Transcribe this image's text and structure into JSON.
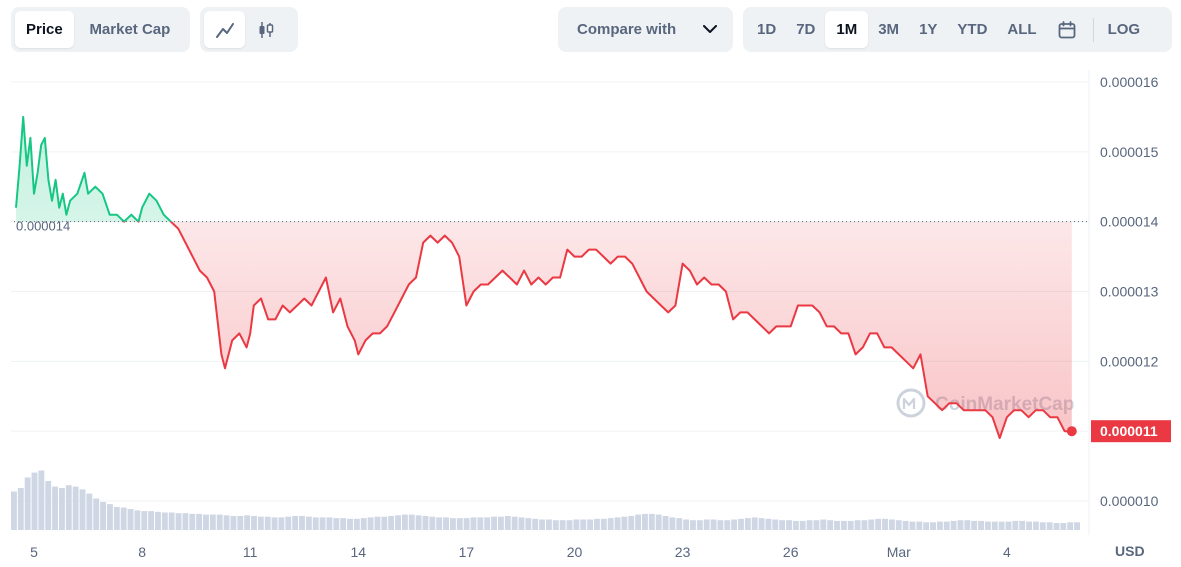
{
  "toolbar": {
    "view_tabs": [
      {
        "label": "Price",
        "active": true
      },
      {
        "label": "Market Cap",
        "active": false
      }
    ],
    "chart_type_icons": [
      {
        "icon": "line-chart-icon",
        "active": true
      },
      {
        "icon": "candlestick-chart-icon",
        "active": false
      }
    ],
    "compare_label": "Compare with",
    "compare_icon": "chevron-down-icon",
    "ranges": [
      {
        "label": "1D",
        "active": false
      },
      {
        "label": "7D",
        "active": false
      },
      {
        "label": "1M",
        "active": true
      },
      {
        "label": "3M",
        "active": false
      },
      {
        "label": "1Y",
        "active": false
      },
      {
        "label": "YTD",
        "active": false
      },
      {
        "label": "ALL",
        "active": false
      }
    ],
    "calendar_icon": "calendar-icon",
    "log_label": "LOG"
  },
  "watermark": {
    "text": "CoinMarketCap",
    "icon": "coinmarketcap-logo-icon"
  },
  "colors": {
    "up": "#16c784",
    "down": "#ea3943",
    "grid": "#eff2f5",
    "axis_text": "#58667e",
    "volume": "#cfd6e4"
  },
  "chart_data": {
    "type": "line",
    "currency_label": "USD",
    "y_ticks": [
      "0.000016",
      "0.000015",
      "0.000014",
      "0.000013",
      "0.000012",
      "0.000011",
      "0.000010"
    ],
    "ylim": [
      9.9e-06,
      1.62e-05
    ],
    "x_ticks": [
      {
        "label": "5",
        "day": 5
      },
      {
        "label": "8",
        "day": 8
      },
      {
        "label": "11",
        "day": 11
      },
      {
        "label": "14",
        "day": 14
      },
      {
        "label": "17",
        "day": 17
      },
      {
        "label": "20",
        "day": 20
      },
      {
        "label": "23",
        "day": 23
      },
      {
        "label": "26",
        "day": 26
      },
      {
        "label": "Mar",
        "day": 29
      },
      {
        "label": "4",
        "day": 32
      }
    ],
    "xlim": [
      4.5,
      34.0
    ],
    "reference_value": 1.4e-05,
    "reference_label": "0.000014",
    "current_value": 1.1e-05,
    "current_label": "0.000011",
    "series": [
      {
        "values": [
          [
            4.5,
            1.42e-05
          ],
          [
            4.6,
            1.48e-05
          ],
          [
            4.7,
            1.55e-05
          ],
          [
            4.8,
            1.48e-05
          ],
          [
            4.9,
            1.52e-05
          ],
          [
            5.0,
            1.44e-05
          ],
          [
            5.1,
            1.47e-05
          ],
          [
            5.2,
            1.51e-05
          ],
          [
            5.3,
            1.52e-05
          ],
          [
            5.4,
            1.46e-05
          ],
          [
            5.5,
            1.43e-05
          ],
          [
            5.6,
            1.46e-05
          ],
          [
            5.7,
            1.42e-05
          ],
          [
            5.8,
            1.44e-05
          ],
          [
            5.9,
            1.41e-05
          ],
          [
            6.0,
            1.43e-05
          ],
          [
            6.2,
            1.44e-05
          ],
          [
            6.4,
            1.47e-05
          ],
          [
            6.5,
            1.44e-05
          ],
          [
            6.7,
            1.45e-05
          ],
          [
            6.9,
            1.44e-05
          ],
          [
            7.1,
            1.41e-05
          ],
          [
            7.3,
            1.41e-05
          ],
          [
            7.5,
            1.4e-05
          ],
          [
            7.7,
            1.41e-05
          ],
          [
            7.9,
            1.4e-05
          ],
          [
            8.0,
            1.42e-05
          ],
          [
            8.2,
            1.44e-05
          ],
          [
            8.4,
            1.43e-05
          ],
          [
            8.6,
            1.41e-05
          ],
          [
            8.8,
            1.4e-05
          ],
          [
            9.0,
            1.39e-05
          ],
          [
            9.2,
            1.37e-05
          ],
          [
            9.4,
            1.35e-05
          ],
          [
            9.6,
            1.33e-05
          ],
          [
            9.8,
            1.32e-05
          ],
          [
            10.0,
            1.3e-05
          ],
          [
            10.2,
            1.21e-05
          ],
          [
            10.3,
            1.19e-05
          ],
          [
            10.5,
            1.23e-05
          ],
          [
            10.7,
            1.24e-05
          ],
          [
            10.9,
            1.22e-05
          ],
          [
            11.0,
            1.24e-05
          ],
          [
            11.1,
            1.28e-05
          ],
          [
            11.3,
            1.29e-05
          ],
          [
            11.5,
            1.26e-05
          ],
          [
            11.7,
            1.26e-05
          ],
          [
            11.9,
            1.28e-05
          ],
          [
            12.1,
            1.27e-05
          ],
          [
            12.3,
            1.28e-05
          ],
          [
            12.5,
            1.29e-05
          ],
          [
            12.7,
            1.28e-05
          ],
          [
            12.9,
            1.3e-05
          ],
          [
            13.1,
            1.32e-05
          ],
          [
            13.3,
            1.27e-05
          ],
          [
            13.5,
            1.29e-05
          ],
          [
            13.7,
            1.25e-05
          ],
          [
            13.9,
            1.23e-05
          ],
          [
            14.0,
            1.21e-05
          ],
          [
            14.2,
            1.23e-05
          ],
          [
            14.4,
            1.24e-05
          ],
          [
            14.6,
            1.24e-05
          ],
          [
            14.8,
            1.25e-05
          ],
          [
            15.0,
            1.27e-05
          ],
          [
            15.2,
            1.29e-05
          ],
          [
            15.4,
            1.31e-05
          ],
          [
            15.6,
            1.32e-05
          ],
          [
            15.8,
            1.37e-05
          ],
          [
            16.0,
            1.38e-05
          ],
          [
            16.2,
            1.37e-05
          ],
          [
            16.4,
            1.38e-05
          ],
          [
            16.6,
            1.37e-05
          ],
          [
            16.8,
            1.35e-05
          ],
          [
            17.0,
            1.28e-05
          ],
          [
            17.2,
            1.3e-05
          ],
          [
            17.4,
            1.31e-05
          ],
          [
            17.6,
            1.31e-05
          ],
          [
            17.8,
            1.32e-05
          ],
          [
            18.0,
            1.33e-05
          ],
          [
            18.2,
            1.32e-05
          ],
          [
            18.4,
            1.31e-05
          ],
          [
            18.6,
            1.33e-05
          ],
          [
            18.8,
            1.31e-05
          ],
          [
            19.0,
            1.32e-05
          ],
          [
            19.2,
            1.31e-05
          ],
          [
            19.4,
            1.32e-05
          ],
          [
            19.6,
            1.32e-05
          ],
          [
            19.8,
            1.36e-05
          ],
          [
            20.0,
            1.35e-05
          ],
          [
            20.2,
            1.35e-05
          ],
          [
            20.4,
            1.36e-05
          ],
          [
            20.6,
            1.36e-05
          ],
          [
            20.8,
            1.35e-05
          ],
          [
            21.0,
            1.34e-05
          ],
          [
            21.2,
            1.35e-05
          ],
          [
            21.4,
            1.35e-05
          ],
          [
            21.6,
            1.34e-05
          ],
          [
            21.8,
            1.32e-05
          ],
          [
            22.0,
            1.3e-05
          ],
          [
            22.2,
            1.29e-05
          ],
          [
            22.4,
            1.28e-05
          ],
          [
            22.6,
            1.27e-05
          ],
          [
            22.8,
            1.28e-05
          ],
          [
            23.0,
            1.34e-05
          ],
          [
            23.2,
            1.33e-05
          ],
          [
            23.4,
            1.31e-05
          ],
          [
            23.6,
            1.32e-05
          ],
          [
            23.8,
            1.31e-05
          ],
          [
            24.0,
            1.31e-05
          ],
          [
            24.2,
            1.3e-05
          ],
          [
            24.4,
            1.26e-05
          ],
          [
            24.6,
            1.27e-05
          ],
          [
            24.8,
            1.27e-05
          ],
          [
            25.0,
            1.26e-05
          ],
          [
            25.2,
            1.25e-05
          ],
          [
            25.4,
            1.24e-05
          ],
          [
            25.6,
            1.25e-05
          ],
          [
            25.8,
            1.25e-05
          ],
          [
            26.0,
            1.25e-05
          ],
          [
            26.2,
            1.28e-05
          ],
          [
            26.4,
            1.28e-05
          ],
          [
            26.6,
            1.28e-05
          ],
          [
            26.8,
            1.27e-05
          ],
          [
            27.0,
            1.25e-05
          ],
          [
            27.2,
            1.25e-05
          ],
          [
            27.4,
            1.24e-05
          ],
          [
            27.6,
            1.24e-05
          ],
          [
            27.8,
            1.21e-05
          ],
          [
            28.0,
            1.22e-05
          ],
          [
            28.2,
            1.24e-05
          ],
          [
            28.4,
            1.24e-05
          ],
          [
            28.6,
            1.22e-05
          ],
          [
            28.8,
            1.22e-05
          ],
          [
            29.0,
            1.21e-05
          ],
          [
            29.2,
            1.2e-05
          ],
          [
            29.4,
            1.19e-05
          ],
          [
            29.6,
            1.21e-05
          ],
          [
            29.8,
            1.15e-05
          ],
          [
            30.0,
            1.14e-05
          ],
          [
            30.2,
            1.13e-05
          ],
          [
            30.4,
            1.14e-05
          ],
          [
            30.6,
            1.14e-05
          ],
          [
            30.8,
            1.13e-05
          ],
          [
            31.0,
            1.13e-05
          ],
          [
            31.2,
            1.13e-05
          ],
          [
            31.4,
            1.13e-05
          ],
          [
            31.6,
            1.12e-05
          ],
          [
            31.8,
            1.09e-05
          ],
          [
            32.0,
            1.12e-05
          ],
          [
            32.2,
            1.13e-05
          ],
          [
            32.4,
            1.13e-05
          ],
          [
            32.6,
            1.12e-05
          ],
          [
            32.8,
            1.13e-05
          ],
          [
            33.0,
            1.13e-05
          ],
          [
            33.2,
            1.12e-05
          ],
          [
            33.4,
            1.12e-05
          ],
          [
            33.6,
            1.1e-05
          ],
          [
            33.8,
            1.1e-05
          ]
        ]
      }
    ],
    "volume": [
      0.55,
      0.6,
      0.75,
      0.82,
      0.85,
      0.7,
      0.62,
      0.6,
      0.64,
      0.62,
      0.58,
      0.52,
      0.45,
      0.4,
      0.37,
      0.33,
      0.32,
      0.3,
      0.28,
      0.27,
      0.27,
      0.26,
      0.25,
      0.25,
      0.24,
      0.24,
      0.23,
      0.23,
      0.22,
      0.22,
      0.22,
      0.21,
      0.2,
      0.2,
      0.21,
      0.2,
      0.19,
      0.19,
      0.18,
      0.18,
      0.19,
      0.2,
      0.2,
      0.19,
      0.18,
      0.18,
      0.18,
      0.17,
      0.17,
      0.16,
      0.16,
      0.17,
      0.18,
      0.19,
      0.19,
      0.2,
      0.21,
      0.22,
      0.22,
      0.21,
      0.2,
      0.19,
      0.18,
      0.18,
      0.17,
      0.17,
      0.17,
      0.18,
      0.18,
      0.18,
      0.19,
      0.19,
      0.2,
      0.19,
      0.18,
      0.17,
      0.16,
      0.15,
      0.15,
      0.14,
      0.14,
      0.14,
      0.15,
      0.15,
      0.15,
      0.16,
      0.16,
      0.17,
      0.18,
      0.19,
      0.2,
      0.22,
      0.23,
      0.23,
      0.22,
      0.2,
      0.18,
      0.17,
      0.15,
      0.14,
      0.14,
      0.15,
      0.15,
      0.14,
      0.14,
      0.15,
      0.16,
      0.17,
      0.18,
      0.17,
      0.16,
      0.15,
      0.14,
      0.14,
      0.13,
      0.13,
      0.14,
      0.14,
      0.15,
      0.14,
      0.13,
      0.13,
      0.13,
      0.14,
      0.14,
      0.15,
      0.16,
      0.16,
      0.15,
      0.14,
      0.13,
      0.12,
      0.12,
      0.11,
      0.11,
      0.12,
      0.12,
      0.13,
      0.14,
      0.14,
      0.13,
      0.13,
      0.12,
      0.12,
      0.12,
      0.12,
      0.13,
      0.13,
      0.12,
      0.12,
      0.11,
      0.11,
      0.1,
      0.1,
      0.11,
      0.11
    ]
  }
}
